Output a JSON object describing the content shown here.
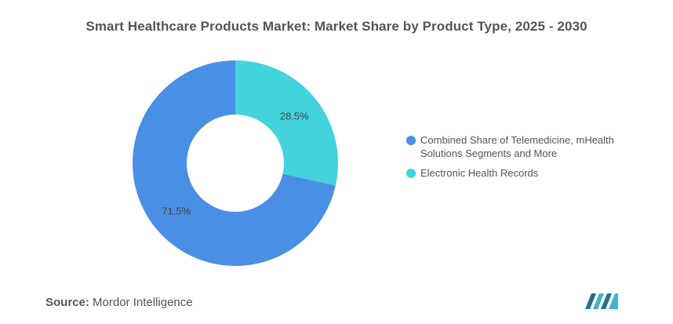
{
  "title": "Smart Healthcare Products Market: Market Share by Product Type, 2025 - 2030",
  "source": {
    "label": "Source:",
    "text": "Mordor Intelligence"
  },
  "colors": {
    "series_1": "#4a8fe6",
    "series_2": "#43d3dc",
    "text": "#555555",
    "logo": "#2a6f87"
  },
  "chart_data": {
    "type": "pie",
    "variant": "donut",
    "categories": [
      "Electronic Health Records",
      "Combined Share of Telemedicine, mHealth Solutions Segments and More"
    ],
    "values": [
      28.5,
      71.5
    ],
    "unit": "%",
    "data_labels": [
      "28.5%",
      "71.5%"
    ],
    "legend_position": "right",
    "legend": [
      {
        "label": "Combined Share of Telemedicine, mHealth Solutions Segments and More",
        "color": "#4a8fe6"
      },
      {
        "label": "Electronic Health Records",
        "color": "#43d3dc"
      }
    ]
  }
}
